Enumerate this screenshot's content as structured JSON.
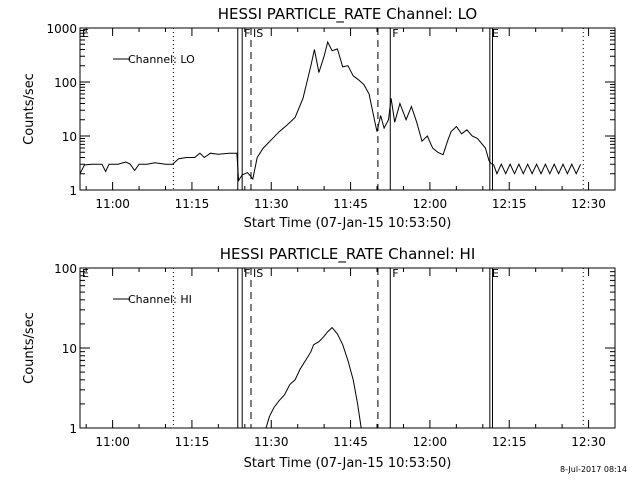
{
  "footer": {
    "timestamp": "8-Jul-2017 08:14"
  },
  "chart_data": [
    {
      "type": "line",
      "title": "HESSI PARTICLE_RATE Channel: LO",
      "xlabel": "Start Time (07-Jan-15 10:53:50)",
      "ylabel": "Counts/sec",
      "yscale": "log",
      "ylim": [
        1,
        1000
      ],
      "xlim": [
        "10:53:50",
        "12:35:00"
      ],
      "x_ticks": [
        "11:00",
        "11:15",
        "11:30",
        "11:45",
        "12:00",
        "12:15",
        "12:30"
      ],
      "y_ticks": [
        "1",
        "10",
        "100",
        "1000"
      ],
      "grid": false,
      "legend": {
        "position": "top-left",
        "entries": [
          "Channel: LO"
        ]
      },
      "markers": [
        {
          "time": "11:11:30",
          "style": "dotted",
          "label": ""
        },
        {
          "time": "11:23:40",
          "style": "solid",
          "label": ""
        },
        {
          "time": "11:24:30",
          "style": "solid",
          "label": "F"
        },
        {
          "time": "11:26:10",
          "style": "dashed",
          "label": "IS"
        },
        {
          "time": "11:50:10",
          "style": "dashed",
          "label": ""
        },
        {
          "time": "11:52:30",
          "style": "solid",
          "label": "F"
        },
        {
          "time": "12:11:20",
          "style": "solid",
          "label": "E"
        },
        {
          "time": "12:11:50",
          "style": "solid",
          "label": ""
        },
        {
          "time": "12:29:00",
          "style": "dotted",
          "label": ""
        }
      ],
      "edge_labels": [
        {
          "text": "E",
          "position": "left"
        }
      ],
      "series": [
        {
          "name": "Channel: LO",
          "segments": [
            [
              [
                "10:53:50",
                2
              ],
              [
                "10:54:40",
                2.9
              ],
              [
                "10:56:00",
                3
              ],
              [
                "10:58:00",
                3
              ],
              [
                "10:58:40",
                2.2
              ],
              [
                "10:59:20",
                3
              ],
              [
                "11:01:00",
                3
              ],
              [
                "11:02:30",
                3.3
              ],
              [
                "11:03:20",
                3
              ],
              [
                "11:04:10",
                2.3
              ],
              [
                "11:05:00",
                3
              ],
              [
                "11:06:30",
                3
              ],
              [
                "11:08:00",
                3.2
              ],
              [
                "11:10:00",
                3
              ],
              [
                "11:11:20",
                3
              ],
              [
                "11:12:30",
                3.8
              ],
              [
                "11:14:00",
                4
              ],
              [
                "11:15:30",
                4
              ],
              [
                "11:16:30",
                4.8
              ],
              [
                "11:17:20",
                4
              ],
              [
                "11:18:30",
                4.8
              ],
              [
                "11:20:00",
                4.6
              ],
              [
                "11:22:00",
                4.8
              ],
              [
                "11:23:30",
                4.8
              ],
              [
                "11:23:50",
                1.5
              ],
              [
                "11:24:30",
                1.9
              ],
              [
                "11:25:30",
                2.1
              ],
              [
                "11:26:30",
                1.6
              ],
              [
                "11:27:20",
                4
              ],
              [
                "11:28:30",
                6
              ],
              [
                "11:30:00",
                8.5
              ],
              [
                "11:31:30",
                12
              ],
              [
                "11:33:00",
                16
              ],
              [
                "11:34:30",
                22
              ],
              [
                "11:36:00",
                50
              ],
              [
                "11:37:30",
                200
              ],
              [
                "11:38:10",
                400
              ],
              [
                "11:39:00",
                150
              ],
              [
                "11:40:00",
                300
              ],
              [
                "11:40:40",
                550
              ],
              [
                "11:41:30",
                380
              ],
              [
                "11:42:30",
                410
              ],
              [
                "11:43:30",
                190
              ],
              [
                "11:44:30",
                200
              ],
              [
                "11:45:30",
                130
              ],
              [
                "11:46:30",
                110
              ],
              [
                "11:47:30",
                90
              ],
              [
                "11:48:30",
                60
              ],
              [
                "11:49:30",
                20
              ],
              [
                "11:50:00",
                12
              ],
              [
                "11:50:40",
                24
              ],
              [
                "11:51:20",
                14
              ],
              [
                "11:52:10",
                20
              ],
              [
                "11:52:40",
                50
              ],
              [
                "11:53:20",
                18
              ],
              [
                "11:54:20",
                40
              ],
              [
                "11:55:30",
                20
              ],
              [
                "11:56:30",
                35
              ],
              [
                "11:57:30",
                18
              ],
              [
                "11:58:30",
                8
              ],
              [
                "11:59:30",
                10
              ],
              [
                "12:00:30",
                6
              ],
              [
                "12:01:30",
                5
              ],
              [
                "12:02:30",
                4.5
              ],
              [
                "12:03:20",
                8
              ],
              [
                "12:04:00",
                12
              ],
              [
                "12:05:00",
                15
              ],
              [
                "12:06:00",
                11
              ],
              [
                "12:07:00",
                13
              ],
              [
                "12:08:00",
                10
              ],
              [
                "12:09:00",
                9
              ],
              [
                "12:10:30",
                6
              ],
              [
                "12:11:10",
                3.5
              ],
              [
                "12:11:40",
                3
              ]
            ],
            [
              [
                "12:12:00",
                3
              ],
              [
                "12:12:40",
                2
              ],
              [
                "12:13:30",
                3
              ],
              [
                "12:14:20",
                2
              ],
              [
                "12:15:10",
                3
              ],
              [
                "12:16:00",
                2
              ],
              [
                "12:16:50",
                3
              ],
              [
                "12:17:40",
                2
              ],
              [
                "12:18:30",
                3
              ],
              [
                "12:19:20",
                2
              ],
              [
                "12:20:10",
                3
              ],
              [
                "12:21:00",
                2
              ],
              [
                "12:21:50",
                3
              ],
              [
                "12:22:40",
                2
              ],
              [
                "12:23:30",
                3
              ],
              [
                "12:24:20",
                2
              ],
              [
                "12:25:10",
                3
              ],
              [
                "12:26:00",
                2
              ],
              [
                "12:26:50",
                3
              ],
              [
                "12:27:40",
                2
              ],
              [
                "12:28:30",
                3
              ]
            ]
          ]
        }
      ]
    },
    {
      "type": "line",
      "title": "HESSI PARTICLE_RATE Channel: HI",
      "xlabel": "Start Time (07-Jan-15 10:53:50)",
      "ylabel": "Counts/sec",
      "yscale": "log",
      "ylim": [
        1,
        100
      ],
      "xlim": [
        "10:53:50",
        "12:35:00"
      ],
      "x_ticks": [
        "11:00",
        "11:15",
        "11:30",
        "11:45",
        "12:00",
        "12:15",
        "12:30"
      ],
      "y_ticks": [
        "1",
        "10",
        "100"
      ],
      "grid": false,
      "legend": {
        "position": "top-left",
        "entries": [
          "Channel: HI"
        ]
      },
      "markers": [
        {
          "time": "11:11:30",
          "style": "dotted",
          "label": ""
        },
        {
          "time": "11:23:40",
          "style": "solid",
          "label": ""
        },
        {
          "time": "11:24:30",
          "style": "solid",
          "label": "F"
        },
        {
          "time": "11:26:10",
          "style": "dashed",
          "label": "IS"
        },
        {
          "time": "11:50:10",
          "style": "dashed",
          "label": ""
        },
        {
          "time": "11:52:30",
          "style": "solid",
          "label": "F"
        },
        {
          "time": "12:11:20",
          "style": "solid",
          "label": "E"
        },
        {
          "time": "12:11:50",
          "style": "solid",
          "label": ""
        },
        {
          "time": "12:29:00",
          "style": "dotted",
          "label": ""
        }
      ],
      "edge_labels": [
        {
          "text": "E",
          "position": "left"
        }
      ],
      "series": [
        {
          "name": "Channel: HI",
          "segments": [
            [
              [
                "11:29:00",
                1
              ],
              [
                "11:29:40",
                1.4
              ],
              [
                "11:30:30",
                1.8
              ],
              [
                "11:31:30",
                2.2
              ],
              [
                "11:32:30",
                2.6
              ],
              [
                "11:33:30",
                3.5
              ],
              [
                "11:34:30",
                4
              ],
              [
                "11:35:30",
                5.5
              ],
              [
                "11:36:30",
                7
              ],
              [
                "11:37:30",
                9
              ],
              [
                "11:38:00",
                11
              ],
              [
                "11:39:00",
                12
              ],
              [
                "11:40:00",
                14
              ],
              [
                "11:40:40",
                16
              ],
              [
                "11:41:30",
                18
              ],
              [
                "11:42:30",
                15
              ],
              [
                "11:43:30",
                11
              ],
              [
                "11:44:30",
                7
              ],
              [
                "11:45:30",
                4
              ],
              [
                "11:46:20",
                2
              ],
              [
                "11:47:00",
                1
              ]
            ]
          ]
        }
      ]
    }
  ]
}
